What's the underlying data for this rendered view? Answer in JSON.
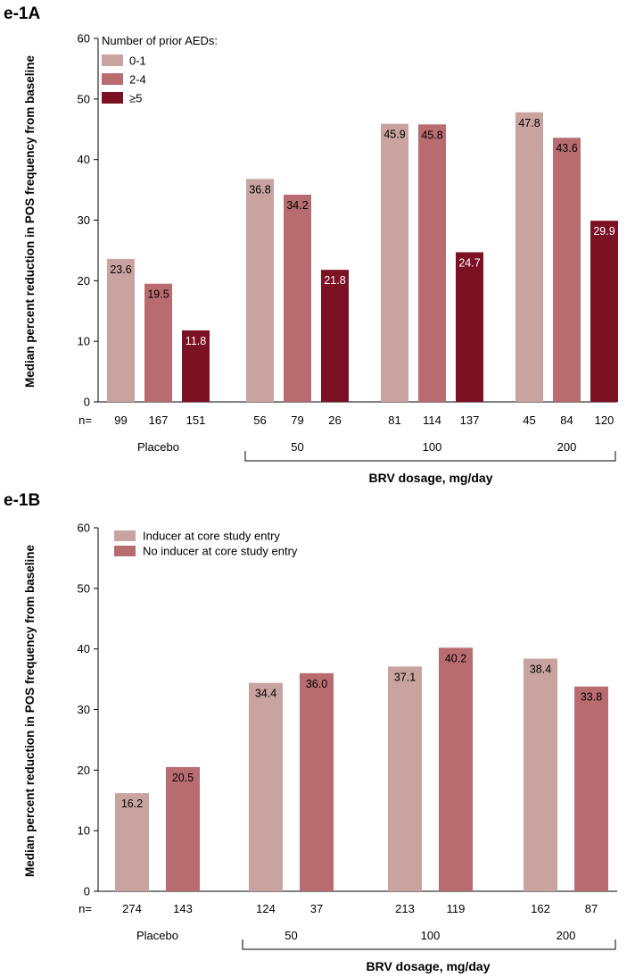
{
  "chart_data": [
    {
      "id": "A",
      "panel_title": "e-1A",
      "type": "bar",
      "ylabel": "Median percent reduction in POS frequency from baseline",
      "xlabel": "BRV dosage, mg/day",
      "ylim": [
        0,
        60
      ],
      "yticks": [
        0,
        10,
        20,
        30,
        40,
        50,
        60
      ],
      "n_prefix": "n=",
      "legend_title": "Number of prior AEDs:",
      "categories": [
        "Placebo",
        "50",
        "100",
        "200"
      ],
      "series": [
        {
          "name": "0-1",
          "color": "#c8a39f",
          "label_color": "#000000",
          "values": [
            23.6,
            36.8,
            45.9,
            47.8
          ],
          "n": [
            "99",
            "56",
            "81",
            "45"
          ]
        },
        {
          "name": "2-4",
          "color": "#b96c70",
          "label_color": "#000000",
          "values": [
            19.5,
            34.2,
            45.8,
            43.6
          ],
          "n": [
            "167",
            "79",
            "114",
            "84"
          ]
        },
        {
          "name": "≥5",
          "color": "#7d1124",
          "label_color": "#ffffff",
          "values": [
            11.8,
            21.8,
            24.7,
            29.9
          ],
          "n": [
            "151",
            "26",
            "137",
            "120"
          ]
        }
      ]
    },
    {
      "id": "B",
      "panel_title": "e-1B",
      "type": "bar",
      "ylabel": "Median percent reduction in POS frequency from baseline",
      "xlabel": "BRV dosage, mg/day",
      "ylim": [
        0,
        60
      ],
      "yticks": [
        0,
        10,
        20,
        30,
        40,
        50,
        60
      ],
      "n_prefix": "n=",
      "legend_title": "",
      "categories": [
        "Placebo",
        "50",
        "100",
        "200"
      ],
      "series": [
        {
          "name": "Inducer at core study entry",
          "color": "#c8a39f",
          "label_color": "#000000",
          "values": [
            16.2,
            34.4,
            37.1,
            38.4
          ],
          "n": [
            "274",
            "124",
            "213",
            "162"
          ]
        },
        {
          "name": "No inducer at core study entry",
          "color": "#b96c70",
          "label_color": "#000000",
          "values": [
            20.5,
            36.0,
            40.2,
            33.8
          ],
          "n": [
            "143",
            "37",
            "119",
            "87"
          ]
        }
      ]
    }
  ]
}
